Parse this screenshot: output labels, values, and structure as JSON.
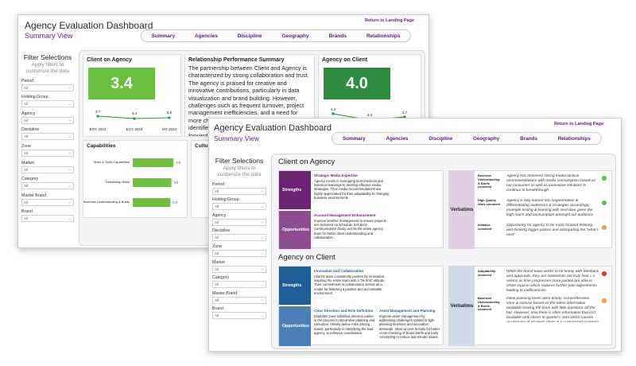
{
  "header": {
    "title": "Agency Evaluation Dashboard",
    "subtitle": "Summary View",
    "back_link": "Return to Landing Page"
  },
  "nav": [
    "Summary",
    "Agencies",
    "Discipline",
    "Geography",
    "Brands",
    "Relationships"
  ],
  "sidebar": {
    "title": "Filter Selections",
    "subtitle": "Apply filters to customize the data",
    "filters": [
      {
        "label": "Period",
        "value": "All"
      },
      {
        "label": "Holding Group",
        "value": "All"
      },
      {
        "label": "Agency",
        "value": "All"
      },
      {
        "label": "Discipline",
        "value": "All"
      },
      {
        "label": "Zone",
        "value": "All"
      },
      {
        "label": "Market",
        "value": "All"
      },
      {
        "label": "Category",
        "value": "All"
      },
      {
        "label": "Master Brand",
        "value": "All"
      },
      {
        "label": "Brand",
        "value": "All"
      }
    ]
  },
  "screen1": {
    "client_on_agency": {
      "title": "Client on Agency",
      "score": "3.4",
      "trend_points": [
        "3.7",
        "3.4",
        "3.5"
      ],
      "trend_labels": [
        "EOY 2023",
        "EOY 2024",
        "MY 2024"
      ]
    },
    "relationship": {
      "title": "Relationship Performance Summary",
      "text": "The partnership between Client and Agency is characterized by strong collaboration and trust. The agency is praised for creative and innovative contributions, particularly in data visualization and brand building. However, challenges such as frequent turnover, project management inefficiencies, and a need for more channel-specific creative work have been identified as areas for improvement. Moving forward, fostering deeper team bonding and ensuring consiste... ...will be cr... achieving..."
    },
    "agency_on_client": {
      "title": "Agency on Client",
      "score": "4.0",
      "trend_points": [
        "4.3",
        "3.3",
        "3.7"
      ]
    },
    "capabilities": {
      "title": "Capabilities",
      "items": [
        {
          "label": "Team & Tools Capabilities",
          "value": "3.8"
        },
        {
          "label": "Leadership Skills",
          "value": "3.6"
        },
        {
          "label": "Business Understanding & Briefs",
          "value": "3.5"
        }
      ]
    },
    "culture_title": "Cultu..."
  },
  "screen2": {
    "client_on_agency": {
      "section_title": "Client on Agency",
      "strengths_label": "Strengths",
      "strengths_head": "Strategic Media Expertise",
      "strengths_text": "Agency excels in leveraging best practices and historical learnings to develop effective media strategies. Their media recommendations are highly appreciated for their adaptability to changing business environments.",
      "opp_label": "Opportunities",
      "opp_head": "Account Management Enhancement",
      "opp_text": "Improve timeline management to ensure projects are delivered on schedule. Enhance communication clarity across the entire agency team for better client understanding and collaboration.",
      "verbatims_label": "Verbatims",
      "verbatims": [
        {
          "key": "Business Understanding & Briefs comment",
          "text": "Agency has delivered strong media tactical recommendations with media consumption based on our consumer as well as innovative solutions to continue to breakthrough.",
          "color": "#5cb85c"
        },
        {
          "key": "High Quality Work comment",
          "text": "Agency is fully leaned into segmentation & differentiating audiences & strategies accordingly, example testing & learning with next door given the high reach and consumption amongst our audience.",
          "color": "#5cb85c"
        },
        {
          "key": "Initiative comment",
          "text": "Opportunity for agency to be more forward thinking and thinking bigger picture and anticipating the \"what's next\"",
          "color": "#f0a030"
        }
      ]
    },
    "agency_on_client": {
      "section_title": "Agency on Client",
      "strengths_label": "Strengths",
      "strengths_head": "Innovation and Collaboration",
      "strengths_text": "Client's team consistently pushes for innovation, inspiring the entire team with a \"be first\" attitude. Their commitment to collaboration serves as a model for fostering a positive and accountable environment",
      "opp_label": "Opportunities",
      "opp_head1": "Clear Direction and Role Definition",
      "opp_text1": "Establish more solidified direction earlier in the process to streamline planning and execution. Clearly define roles among teams, particularly in identifying the lead agency, to enhance coordination.",
      "opp_head2": "Asset Management and Planning",
      "opp_text2": "Improve asset management by addressing challenges related to tight planning timelines and innovation demands. Allow access to tools for better cross-checking of brand briefs and early concepting to reduce last-minute issues.",
      "verbatims_label": "Verbatims",
      "verbatims": [
        {
          "key": "Adaptability comment",
          "text": "While the brand team works to be timely with feedback and approvals, they are sometimes not truly final = it seems as time progresses more parties are able to share input in which requires further plan adjustments leading to inefficiencies.",
          "color": "#d9342b"
        },
        {
          "key": "Business Understanding & Briefs comment",
          "text": "Initial planning briefs were timely, comprehensive, clear & concise based on the latest information available leaving the team with little questions off the bat. However, now there is often information that isn't available until closer to quarter's start which causes re-planning of strategic plans & a customized quarterly planning process. We do not have built in brief refreshes as part of this quarterly process.",
          "color": "#f0a030"
        }
      ]
    }
  }
}
